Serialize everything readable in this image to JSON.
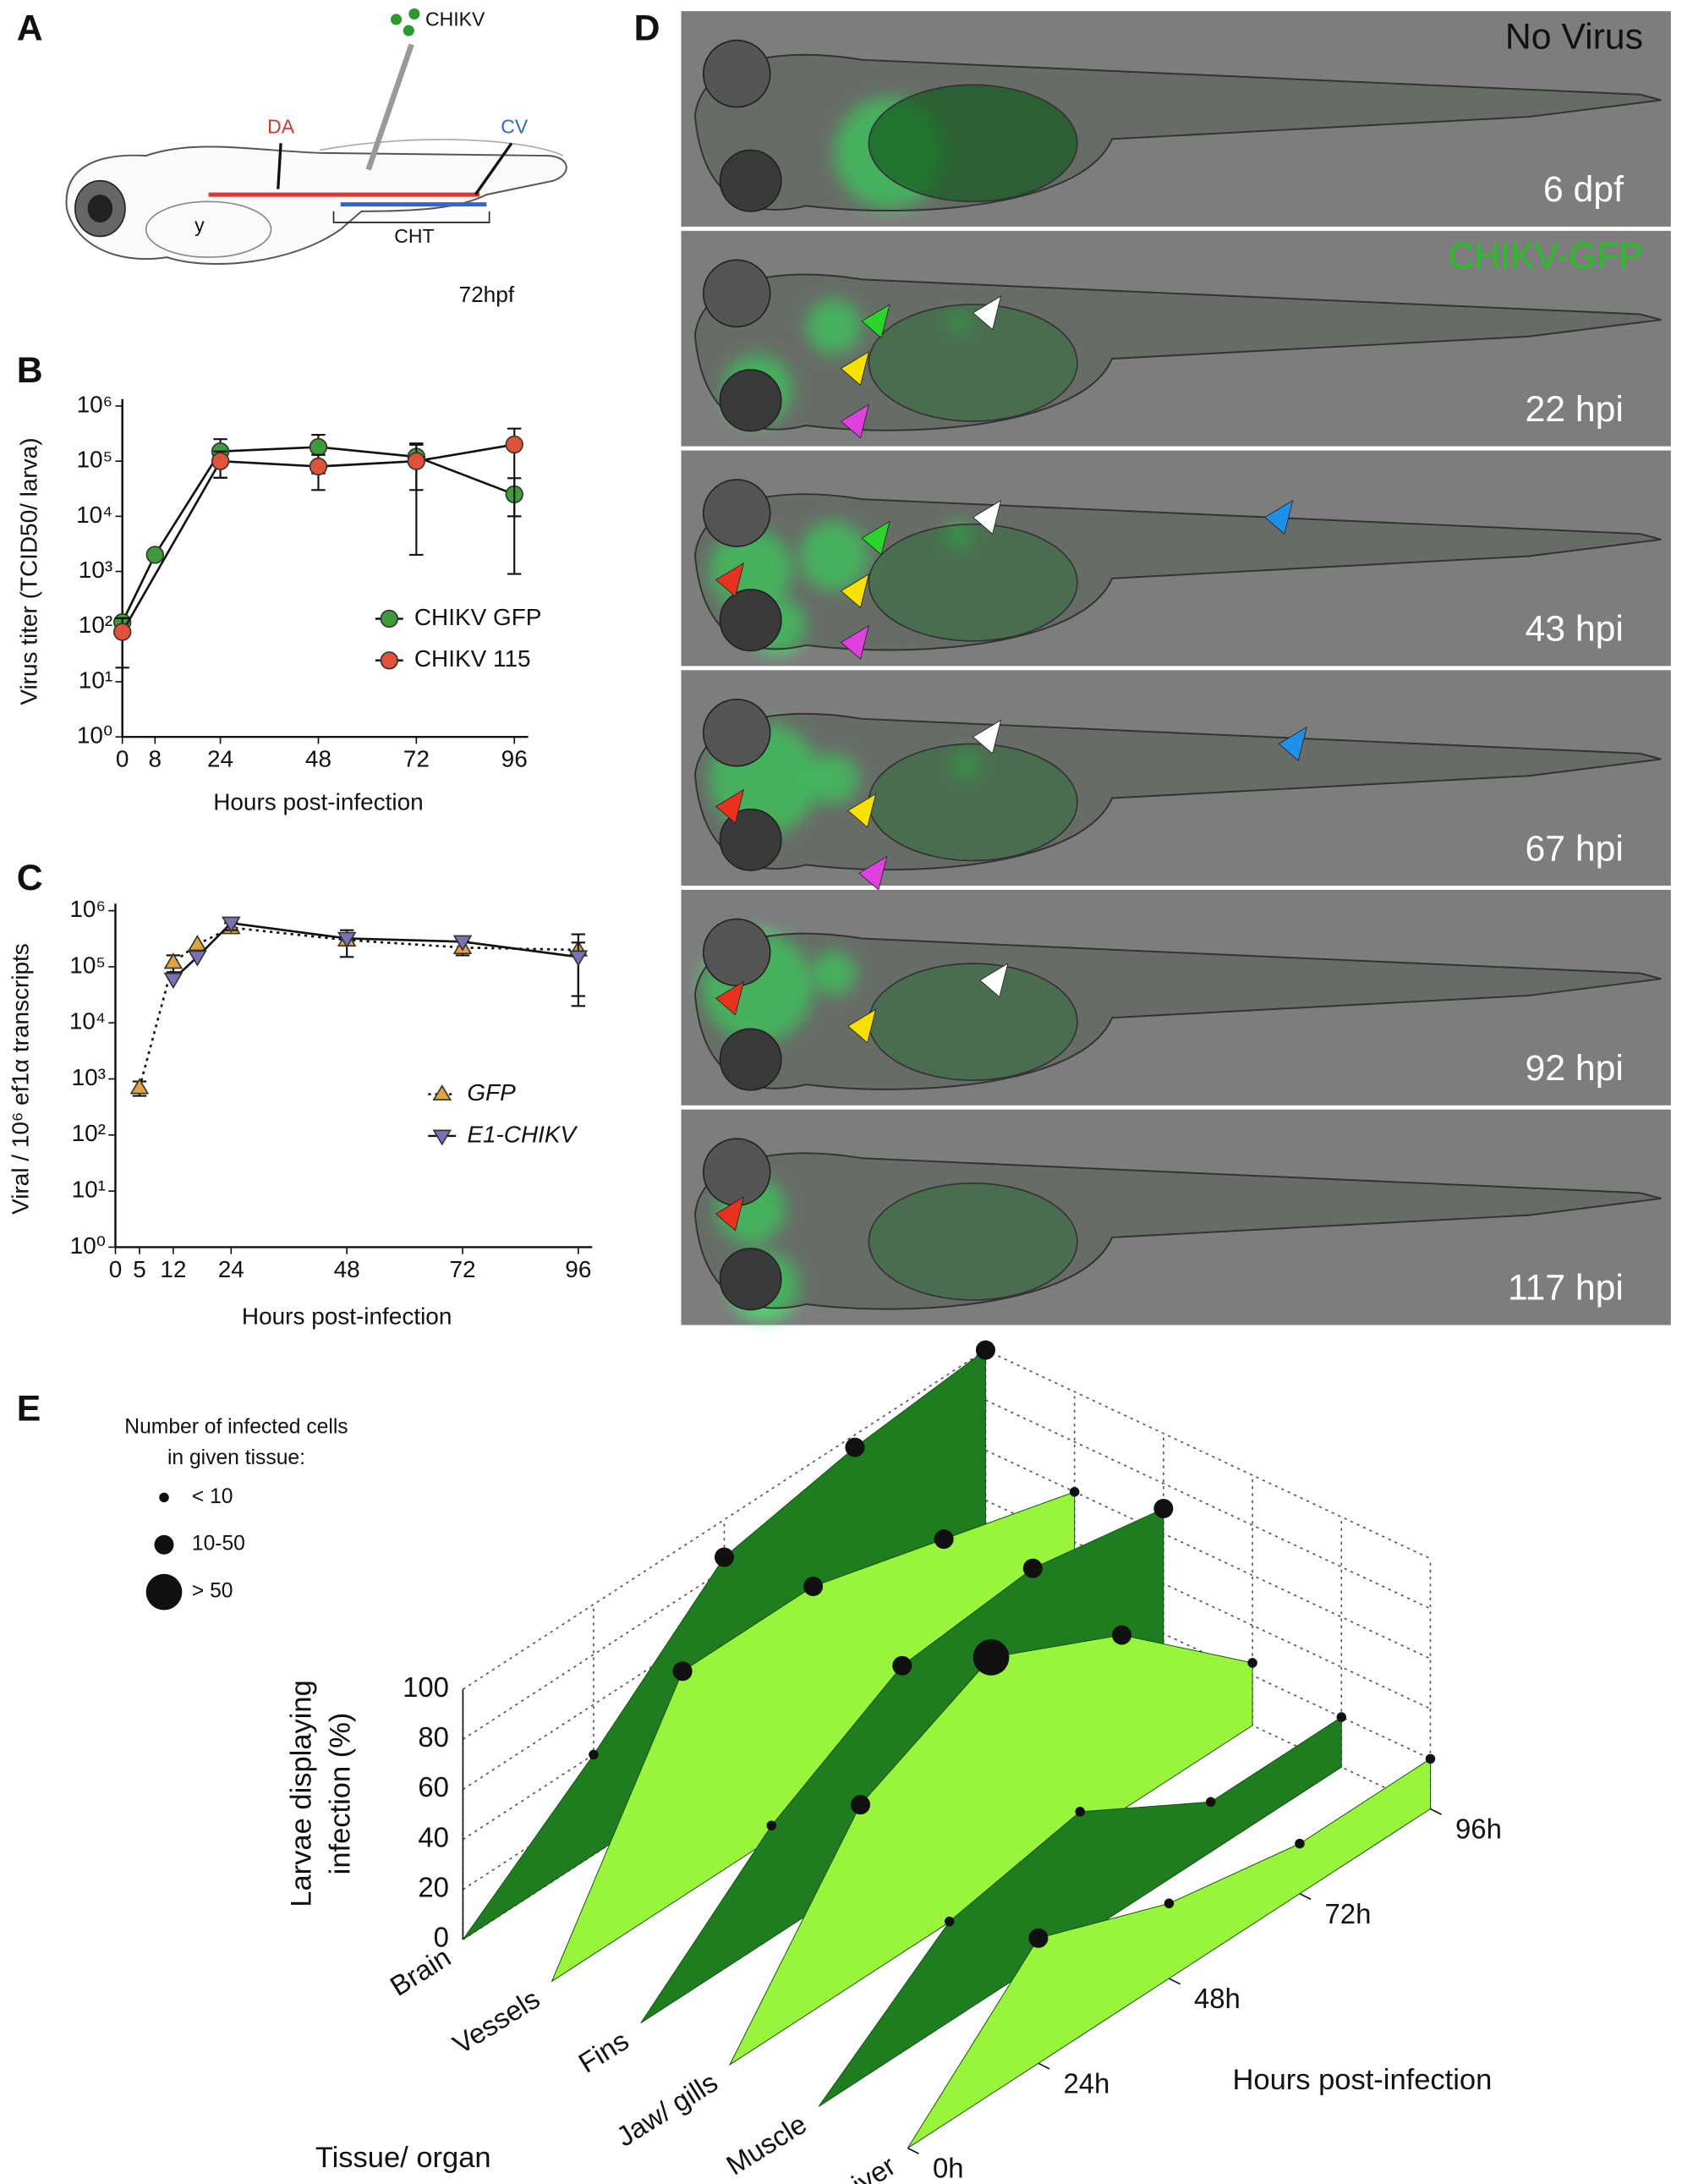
{
  "panel_labels": [
    "A",
    "B",
    "C",
    "D",
    "E"
  ],
  "schematic": {
    "virus": "CHIKV",
    "da": "DA",
    "cv": "CV",
    "yolk": "y",
    "cht": "CHT",
    "stage": "72hpf"
  },
  "micrographs": [
    {
      "label": "No Virus",
      "time": "6 dpf"
    },
    {
      "label": "CHIKV-GFP",
      "time": "22 hpi"
    },
    {
      "time": "43 hpi"
    },
    {
      "time": "67 hpi"
    },
    {
      "time": "92 hpi"
    },
    {
      "time": "117 hpi"
    }
  ],
  "chart_data": [
    {
      "type": "line",
      "ylabel": "Virus titer (TCID50/ larva)",
      "xlabel": "Hours post-infection",
      "log_y": true,
      "xlim": [
        0,
        96
      ],
      "xticks": [
        0,
        8,
        24,
        48,
        72,
        96
      ],
      "ylim": [
        1,
        1000000
      ],
      "yticks": [
        {
          "value": 1,
          "label": "10⁰"
        },
        {
          "value": 10,
          "label": "10¹"
        },
        {
          "value": 100,
          "label": "10²"
        },
        {
          "value": 1000,
          "label": "10³"
        },
        {
          "value": 10000,
          "label": "10⁴"
        },
        {
          "value": 100000,
          "label": "10⁵"
        },
        {
          "value": 1000000,
          "label": "10⁶"
        }
      ],
      "legend": "lower right",
      "series": [
        {
          "name": "CHIKV GFP",
          "color": "#3f9a3a",
          "marker": "circle",
          "line_style": "solid",
          "x": [
            0,
            8,
            24,
            48,
            72,
            96
          ],
          "values": [
            120,
            2000,
            150000,
            180000,
            120000,
            25000
          ],
          "errors": [
            null,
            null,
            100000,
            120000,
            90000,
            24100
          ]
        },
        {
          "name": "CHIKV 115",
          "color": "#e0533a",
          "marker": "circle",
          "line_style": "solid",
          "x": [
            0,
            24,
            48,
            72,
            96
          ],
          "values": [
            80,
            100000,
            80000,
            100000,
            200000
          ],
          "errors": [
            62,
            50000,
            50000,
            98000,
            190000
          ]
        }
      ]
    },
    {
      "type": "line",
      "ylabel": "Viral / 10⁶ ef1α transcripts",
      "xlabel": "Hours post-infection",
      "log_y": true,
      "xlim": [
        0,
        96
      ],
      "xticks": [
        0,
        5,
        12,
        24,
        48,
        72,
        96
      ],
      "ylim": [
        1,
        1000000
      ],
      "yticks": [
        {
          "value": 1,
          "label": "10⁰"
        },
        {
          "value": 10,
          "label": "10¹"
        },
        {
          "value": 100,
          "label": "10²"
        },
        {
          "value": 1000,
          "label": "10³"
        },
        {
          "value": 10000,
          "label": "10⁴"
        },
        {
          "value": 100000,
          "label": "10⁵"
        },
        {
          "value": 1000000,
          "label": "10⁶"
        }
      ],
      "legend": "lower right",
      "series": [
        {
          "name": "GFP",
          "color": "#e3a33a",
          "marker": "triangle",
          "line_style": "dotted",
          "x": [
            5,
            12,
            17,
            24,
            48,
            72,
            96
          ],
          "values": [
            700,
            120000,
            250000,
            500000,
            300000,
            220000,
            200000
          ],
          "errors": [
            200,
            40000,
            null,
            100000,
            150000,
            60000,
            180000
          ]
        },
        {
          "name": "E1-CHIKV",
          "color": "#7a72b4",
          "marker": "triangle-down",
          "line_style": "solid",
          "x": [
            12,
            17,
            24,
            48,
            72,
            96
          ],
          "values": [
            60000,
            150000,
            600000,
            320000,
            280000,
            150000
          ],
          "errors": [
            null,
            null,
            150000,
            null,
            null,
            120000
          ]
        }
      ]
    },
    {
      "type": "ribbon3d",
      "size_legend_title": [
        "Number of infected cells",
        "in given tissue:"
      ],
      "size_classes": [
        "< 10",
        "10-50",
        "> 50"
      ],
      "zlabel": [
        "Larvae displaying",
        "infection (%)"
      ],
      "xlabel": "Tissue/ organ",
      "ylabel": "Hours post-infection",
      "x": [
        0,
        24,
        48,
        72,
        96
      ],
      "ylim": [
        0,
        96
      ],
      "yticks": [
        {
          "value": 0,
          "label": "0h"
        },
        {
          "value": 24,
          "label": "24h"
        },
        {
          "value": 48,
          "label": "48h"
        },
        {
          "value": 72,
          "label": "72h"
        },
        {
          "value": 96,
          "label": "96h"
        }
      ],
      "zlim": [
        0,
        100
      ],
      "zticks": [
        0,
        20,
        40,
        60,
        80,
        100
      ],
      "grid": true,
      "series": [
        {
          "name": "Brain",
          "color": "#1e7d1e",
          "values": [
            0,
            40,
            85,
            95,
            100
          ],
          "sizes": [
            null,
            0,
            1,
            1,
            1
          ]
        },
        {
          "name": "Vessels",
          "color": "#99f53c",
          "values": [
            0,
            90,
            90,
            75,
            60
          ],
          "sizes": [
            null,
            1,
            1,
            1,
            0
          ]
        },
        {
          "name": "Fins",
          "color": "#1e7d1e",
          "values": [
            0,
            45,
            75,
            80,
            70
          ],
          "sizes": [
            null,
            0,
            1,
            1,
            1
          ]
        },
        {
          "name": "Jaw/ gills",
          "color": "#99f53c",
          "values": [
            0,
            70,
            95,
            70,
            25
          ],
          "sizes": [
            null,
            1,
            2,
            1,
            0
          ]
        },
        {
          "name": "Muscle",
          "color": "#1e7d1e",
          "values": [
            0,
            40,
            50,
            20,
            20
          ],
          "sizes": [
            null,
            0,
            0,
            0,
            0
          ]
        },
        {
          "name": "Liver",
          "color": "#99f53c",
          "values": [
            0,
            50,
            30,
            20,
            20
          ],
          "sizes": [
            null,
            1,
            0,
            0,
            0
          ]
        }
      ]
    }
  ]
}
